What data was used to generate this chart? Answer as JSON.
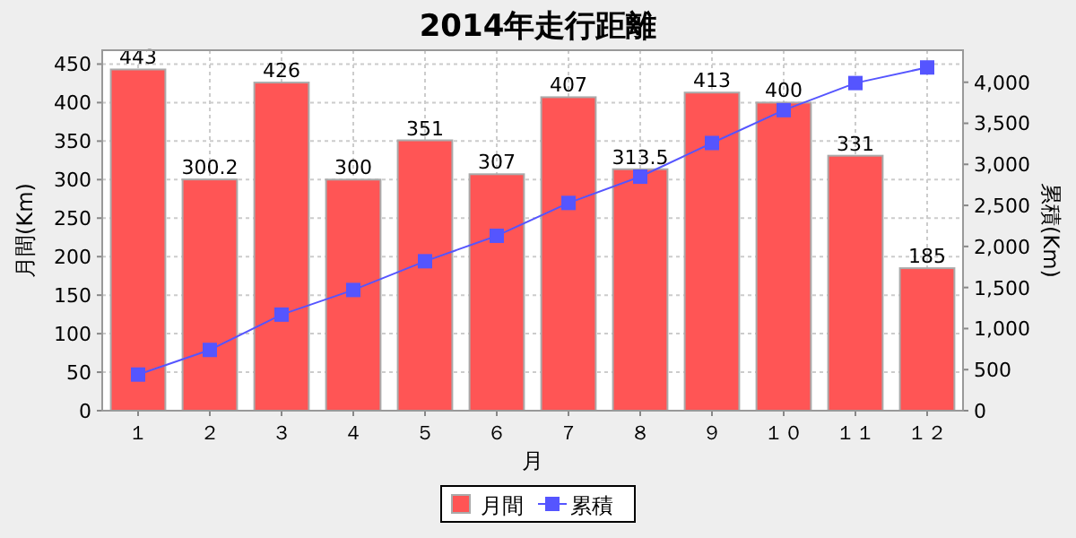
{
  "chart_data": {
    "type": "bar",
    "title": "2014年走行距離",
    "xlabel": "月",
    "ylabel": "月間(Km)",
    "y2label": "累積(Km)",
    "categories": [
      "１",
      "２",
      "３",
      "４",
      "５",
      "６",
      "７",
      "８",
      "９",
      "１０",
      "１１",
      "１２"
    ],
    "series": [
      {
        "name": "月間",
        "color": "#ff5555",
        "values": [
          443,
          300.2,
          426,
          300,
          351,
          307,
          407,
          313.5,
          413,
          400,
          331,
          185
        ],
        "value_labels": [
          "443",
          "300.2",
          "426",
          "300",
          "351",
          "307",
          "407",
          "313.5",
          "413",
          "400",
          "331",
          "185"
        ]
      },
      {
        "name": "累積",
        "type": "line",
        "axis": "y2",
        "color": "#5555ff",
        "marker": "square",
        "values": [
          440,
          740,
          1170,
          1470,
          1820,
          2130,
          2530,
          2850,
          3260,
          3660,
          3990,
          4180
        ]
      }
    ],
    "ylim": [
      0,
      468
    ],
    "yticks": [
      0,
      50,
      100,
      150,
      200,
      250,
      300,
      350,
      400,
      450
    ],
    "y2lim": [
      0,
      4390
    ],
    "y2ticks": [
      0,
      {
        "value": 500,
        "label": "500"
      },
      {
        "value": 1000,
        "label": "1,000"
      },
      {
        "value": 1500,
        "label": "1,500"
      },
      {
        "value": 2000,
        "label": "2,000"
      },
      {
        "value": 2500,
        "label": "2,500"
      },
      {
        "value": 3000,
        "label": "3,000"
      },
      {
        "value": 3500,
        "label": "3,500"
      },
      {
        "value": 4000,
        "label": "4,000"
      }
    ],
    "grid": true,
    "legend": "bottom"
  }
}
